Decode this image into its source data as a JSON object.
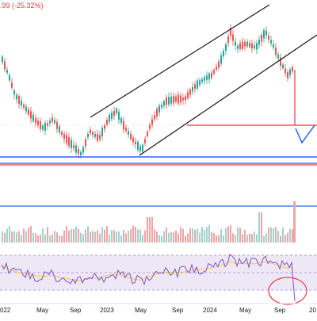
{
  "header": {
    "change_value": ".99",
    "change_percent": "(-25.32%)"
  },
  "time_axis": {
    "labels": [
      "022",
      "May",
      "Sep",
      "2023",
      "May",
      "Sep",
      "2024",
      "May",
      "Sep",
      "20"
    ]
  },
  "colors": {
    "up": "#26a69a",
    "down": "#ef5350",
    "volume_up": "#9fd3cb",
    "volume_down": "#f1a3a6",
    "channel": "#131722",
    "support_blue": "#2962ff",
    "support_red": "#f23645",
    "rsi_line": "#7e57c2",
    "rsi_ma": "#f2c94c",
    "rsi_band": "#ede7f6",
    "circle": "#f23645"
  },
  "icons": {
    "target_arrow": "target-arrow-icon",
    "circle_marker": "circle-annotation-icon"
  }
}
